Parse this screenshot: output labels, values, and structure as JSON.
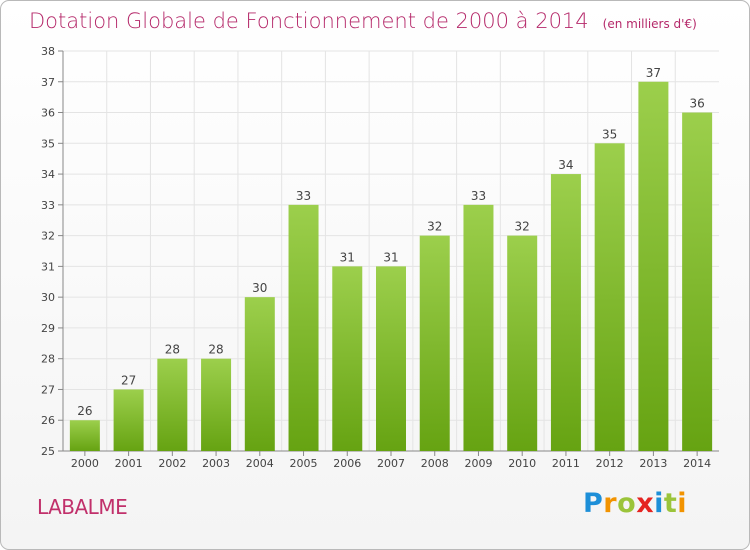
{
  "chart_data": {
    "type": "bar",
    "title": "Dotation Globale de Fonctionnement de 2000 à 2014",
    "unit_note": "(en milliers d'€)",
    "categories": [
      "2000",
      "2001",
      "2002",
      "2003",
      "2004",
      "2005",
      "2006",
      "2007",
      "2008",
      "2009",
      "2010",
      "2011",
      "2012",
      "2013",
      "2014"
    ],
    "values": [
      26,
      27,
      28,
      28,
      30,
      33,
      31,
      31,
      32,
      33,
      32,
      34,
      35,
      37,
      36
    ],
    "ylim": [
      25,
      38
    ],
    "yticks": [
      25,
      26,
      27,
      28,
      29,
      30,
      31,
      32,
      33,
      34,
      35,
      36,
      37,
      38
    ],
    "xlabel": "",
    "ylabel": "",
    "grid": true,
    "colors": {
      "bar_top": "#9ccf4c",
      "bar_bottom": "#66a312",
      "title": "#b5296a",
      "grid": "#e4e4e4"
    }
  },
  "footer": {
    "commune": "LABALME",
    "logo_text": "Proxiti"
  }
}
